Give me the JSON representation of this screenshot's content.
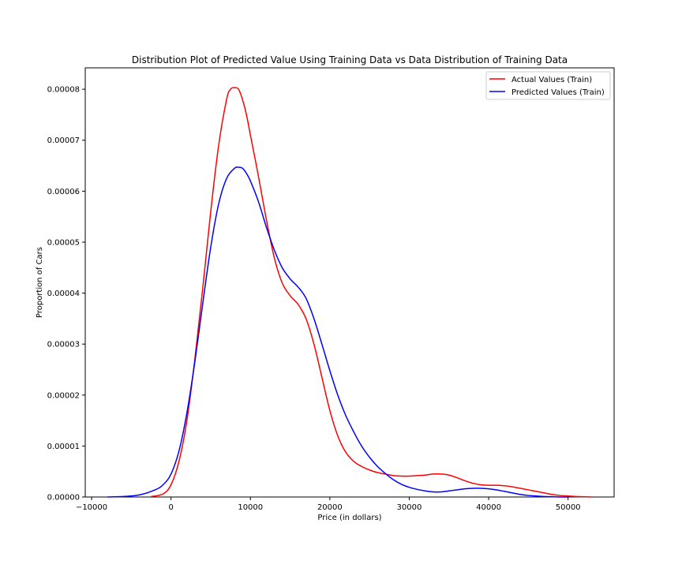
{
  "chart_data": {
    "type": "line",
    "title": "Distribution Plot of Predicted Value Using Training Data vs Data Distribution of Training Data",
    "xlabel": "Price (in dollars)",
    "ylabel": "Proportion of Cars",
    "xlim": [
      -10800,
      55800
    ],
    "ylim": [
      0,
      8.42e-05
    ],
    "x_ticks": [
      -10000,
      0,
      10000,
      20000,
      30000,
      40000,
      50000
    ],
    "x_tick_labels": [
      "−10000",
      "0",
      "10000",
      "20000",
      "30000",
      "40000",
      "50000"
    ],
    "y_ticks": [
      0,
      1e-05,
      2e-05,
      3e-05,
      4e-05,
      5e-05,
      6e-05,
      7e-05,
      8e-05
    ],
    "y_tick_labels": [
      "0.00000",
      "0.00001",
      "0.00002",
      "0.00003",
      "0.00004",
      "0.00005",
      "0.00006",
      "0.00007",
      "0.00008"
    ],
    "grid": false,
    "legend_position": "top-right",
    "series": [
      {
        "name": "Actual Values (Train)",
        "color": "#ff0000",
        "x": [
          -2500,
          -1000,
          0,
          1000,
          2000,
          3000,
          4000,
          5000,
          6000,
          7000,
          7500,
          8000,
          8500,
          9000,
          9500,
          10000,
          11000,
          12000,
          13000,
          14000,
          15000,
          16000,
          17000,
          18000,
          19000,
          20000,
          21000,
          22000,
          23000,
          24000,
          25000,
          26000,
          27000,
          28000,
          29000,
          30000,
          31000,
          32000,
          33000,
          34000,
          35000,
          36000,
          37000,
          38000,
          39000,
          40000,
          41000,
          42000,
          43000,
          44000,
          45000,
          46000,
          47000,
          48000,
          49000,
          50000,
          51000,
          52000,
          53000
        ],
        "y": [
          1e-07,
          6e-07,
          2.4e-06,
          7e-06,
          1.5e-05,
          2.7e-05,
          4.1e-05,
          5.6e-05,
          6.9e-05,
          7.8e-05,
          8e-05,
          8.03e-05,
          8e-05,
          7.8e-05,
          7.5e-05,
          7.1e-05,
          6.3e-05,
          5.45e-05,
          4.7e-05,
          4.2e-05,
          3.95e-05,
          3.78e-05,
          3.5e-05,
          3e-05,
          2.35e-05,
          1.7e-05,
          1.2e-05,
          8.8e-06,
          7e-06,
          6e-06,
          5.3e-06,
          4.8e-06,
          4.5e-06,
          4.2e-06,
          4.1e-06,
          4.1e-06,
          4.2e-06,
          4.3e-06,
          4.5e-06,
          4.5e-06,
          4.3e-06,
          3.8e-06,
          3.2e-06,
          2.7e-06,
          2.4e-06,
          2.3e-06,
          2.3e-06,
          2.2e-06,
          2e-06,
          1.7e-06,
          1.4e-06,
          1.1e-06,
          8e-07,
          5e-07,
          3e-07,
          2e-07,
          1e-07,
          5e-08,
          0.0
        ]
      },
      {
        "name": "Predicted Values (Train)",
        "color": "#0000ff",
        "x": [
          -8000,
          -6000,
          -4000,
          -2000,
          -1000,
          0,
          1000,
          2000,
          3000,
          4000,
          5000,
          6000,
          7000,
          8000,
          8500,
          9000,
          9500,
          10000,
          11000,
          12000,
          13000,
          14000,
          15000,
          16000,
          17000,
          18000,
          19000,
          20000,
          21000,
          22000,
          23000,
          24000,
          25000,
          26000,
          27000,
          28000,
          29000,
          30000,
          31000,
          32000,
          33000,
          34000,
          35000,
          36000,
          37000,
          38000,
          39000,
          40000,
          41000,
          42000,
          43000,
          44000,
          45000,
          46000,
          47000,
          48000,
          49000,
          50000
        ],
        "y": [
          0.0,
          1e-07,
          4e-07,
          1.4e-06,
          2.4e-06,
          4.5e-06,
          9e-06,
          1.65e-05,
          2.65e-05,
          3.8e-05,
          4.9e-05,
          5.75e-05,
          6.25e-05,
          6.45e-05,
          6.47e-05,
          6.45e-05,
          6.35e-05,
          6.2e-05,
          5.8e-05,
          5.3e-05,
          4.85e-05,
          4.5e-05,
          4.28e-05,
          4.12e-05,
          3.9e-05,
          3.5e-05,
          3e-05,
          2.48e-05,
          2e-05,
          1.6e-05,
          1.28e-05,
          1e-05,
          7.8e-06,
          6e-06,
          4.6e-06,
          3.4e-06,
          2.5e-06,
          1.9e-06,
          1.5e-06,
          1.2e-06,
          1e-06,
          1e-06,
          1.2e-06,
          1.4e-06,
          1.6e-06,
          1.7e-06,
          1.7e-06,
          1.6e-06,
          1.4e-06,
          1.1e-06,
          8e-07,
          5e-07,
          3e-07,
          2e-07,
          1e-07,
          5e-08,
          0.0,
          0.0
        ]
      }
    ]
  }
}
